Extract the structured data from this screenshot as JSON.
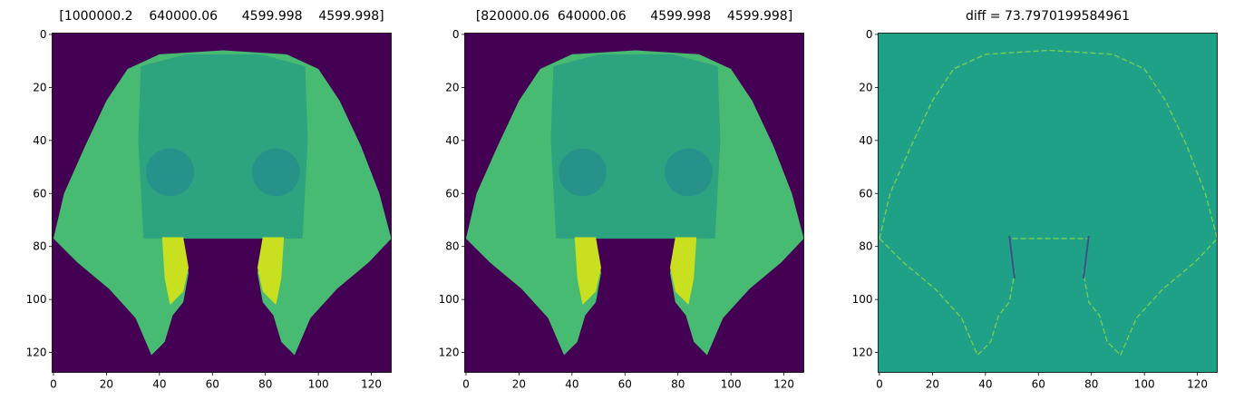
{
  "chart_data": [
    {
      "type": "image",
      "title": "[1000000.2    640000.06      4599.998    4599.998]",
      "xlim": [
        -0.5,
        127.5
      ],
      "ylim": [
        127.5,
        -0.5
      ],
      "xticks": [
        0,
        20,
        40,
        60,
        80,
        100,
        120
      ],
      "yticks": [
        0,
        20,
        40,
        60,
        80,
        100,
        120
      ]
    },
    {
      "type": "image",
      "title": "[820000.06  640000.06      4599.998    4599.998]",
      "xlim": [
        -0.5,
        127.5
      ],
      "ylim": [
        127.5,
        -0.5
      ],
      "xticks": [
        0,
        20,
        40,
        60,
        80,
        100,
        120
      ],
      "yticks": [
        0,
        20,
        40,
        60,
        80,
        100,
        120
      ]
    },
    {
      "type": "diff-image",
      "title": "diff = 73.7970199584961",
      "xlim": [
        -0.5,
        127.5
      ],
      "ylim": [
        127.5,
        -0.5
      ],
      "xticks": [
        0,
        20,
        40,
        60,
        80,
        100,
        120
      ],
      "yticks": [
        0,
        20,
        40,
        60,
        80,
        100,
        120
      ]
    }
  ]
}
